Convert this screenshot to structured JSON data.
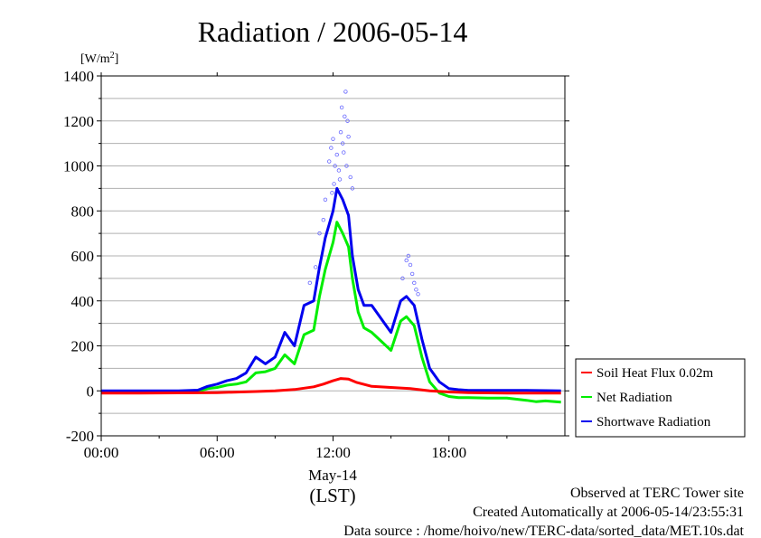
{
  "chart_data": {
    "type": "line",
    "title": "Radiation / 2006-05-14",
    "ylabel": "[W/m2]",
    "ylabel_base": "[W/m",
    "ylabel_sup": "2",
    "ylabel_end": "]",
    "xlabel_date": "May-14",
    "xlabel": "(LST)",
    "x_range": [
      0,
      24
    ],
    "ylim": [
      -200,
      1400
    ],
    "grid": true,
    "legend_position": "lower-right outside",
    "y_ticks": [
      "-200",
      "0",
      "200",
      "400",
      "600",
      "800",
      "1000",
      "1200",
      "1400"
    ],
    "x_ticks": [
      "00:00",
      "06:00",
      "12:00",
      "18:00"
    ],
    "series": [
      {
        "name": "Soil Heat Flux 0.02m",
        "color": "#ff0000",
        "x": [
          0,
          2,
          4,
          6,
          8,
          9,
          10,
          11,
          11.5,
          12,
          12.4,
          12.8,
          13.2,
          14,
          15,
          16,
          17,
          18,
          19,
          20,
          21,
          22,
          23,
          23.8
        ],
        "y": [
          -10,
          -10,
          -9,
          -8,
          -3,
          0,
          6,
          18,
          30,
          45,
          55,
          52,
          38,
          20,
          15,
          10,
          0,
          -5,
          -8,
          -9,
          -10,
          -10,
          -10,
          -10
        ]
      },
      {
        "name": "Net Radiation",
        "color": "#00ee00",
        "x": [
          0,
          4,
          5,
          5.5,
          6,
          6.5,
          7,
          7.5,
          8,
          8.5,
          9,
          9.5,
          10,
          10.5,
          11,
          11.3,
          11.6,
          12,
          12.2,
          12.5,
          12.8,
          13,
          13.3,
          13.6,
          14,
          14.5,
          15,
          15.5,
          15.8,
          16.2,
          16.6,
          17,
          17.5,
          18,
          18.5,
          19,
          20,
          21,
          22,
          22.5,
          23,
          23.8
        ],
        "y": [
          -5,
          -5,
          -4,
          10,
          15,
          25,
          30,
          40,
          80,
          85,
          100,
          160,
          120,
          250,
          270,
          420,
          540,
          660,
          750,
          700,
          640,
          500,
          350,
          280,
          260,
          220,
          180,
          310,
          330,
          290,
          150,
          40,
          -10,
          -25,
          -30,
          -30,
          -32,
          -32,
          -42,
          -48,
          -45,
          -50
        ]
      },
      {
        "name": "Shortwave Radiation",
        "color": "#0000ee",
        "x": [
          0,
          4,
          5,
          5.5,
          6,
          6.5,
          7,
          7.5,
          8,
          8.5,
          9,
          9.5,
          10,
          10.5,
          11,
          11.3,
          11.6,
          12,
          12.2,
          12.5,
          12.8,
          13,
          13.3,
          13.6,
          14,
          14.5,
          15,
          15.5,
          15.8,
          16.2,
          16.6,
          17,
          17.5,
          18,
          18.5,
          19,
          20,
          21,
          22,
          23,
          23.8
        ],
        "y": [
          0,
          0,
          3,
          20,
          30,
          45,
          55,
          80,
          150,
          120,
          150,
          260,
          200,
          380,
          400,
          550,
          680,
          800,
          900,
          850,
          780,
          600,
          450,
          380,
          380,
          320,
          260,
          400,
          420,
          380,
          230,
          100,
          40,
          10,
          5,
          2,
          2,
          2,
          2,
          1,
          0
        ]
      }
    ],
    "scatter_series": {
      "name": "Shortwave Radiation",
      "color": "#6666ff",
      "x": [
        11.3,
        11.5,
        11.6,
        11.8,
        11.9,
        12.0,
        12.1,
        12.2,
        12.3,
        12.4,
        12.5,
        12.6,
        12.7,
        12.8,
        12.9,
        13.0,
        12.45,
        12.65,
        12.05,
        12.75,
        11.95,
        12.35,
        12.55,
        15.8,
        15.9,
        16.0,
        16.1,
        16.2,
        16.3,
        16.4,
        15.6,
        10.8,
        11.1
      ],
      "y": [
        700,
        760,
        850,
        1020,
        1080,
        1120,
        1000,
        1050,
        980,
        1150,
        1100,
        1220,
        1000,
        1130,
        950,
        900,
        1260,
        1330,
        920,
        1200,
        880,
        940,
        1060,
        580,
        600,
        560,
        520,
        480,
        450,
        430,
        500,
        480,
        550
      ]
    },
    "legend": [
      "Soil Heat Flux 0.02m",
      "Net Radiation",
      "Shortwave Radiation"
    ],
    "footer": {
      "observed": "Observed at TERC Tower site",
      "created": "Created Automatically at 2006-05-14/23:55:31",
      "source": "Data source : /home/hoivo/new/TERC-data/sorted_data/MET.10s.dat"
    }
  }
}
